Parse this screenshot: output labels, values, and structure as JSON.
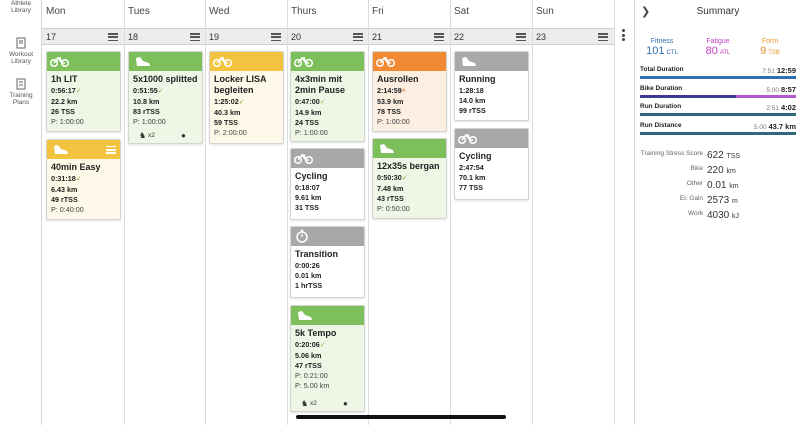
{
  "nav": {
    "items": [
      {
        "label": "Athlete Library"
      },
      {
        "label": "Workout Library"
      },
      {
        "label": "Training Plans"
      }
    ]
  },
  "days": [
    {
      "name": "Mon",
      "date": "17"
    },
    {
      "name": "Tues",
      "date": "18"
    },
    {
      "name": "Wed",
      "date": "19"
    },
    {
      "name": "Thurs",
      "date": "20"
    },
    {
      "name": "Fri",
      "date": "21"
    },
    {
      "name": "Sat",
      "date": "22"
    },
    {
      "name": "Sun",
      "date": "23"
    }
  ],
  "workouts": {
    "mon_1": {
      "title": "1h LIT",
      "duration": "0:56:17",
      "distance": "22.2 km",
      "load": "26 TSS",
      "planned": "P: 1:00:00"
    },
    "mon_2": {
      "title": "40min Easy",
      "duration": "0:31:18",
      "distance": "6.43 km",
      "load": "49 rTSS",
      "planned": "P: 0:40:00"
    },
    "tue_1": {
      "title": "5x1000 splitted",
      "duration": "0:51:55",
      "distance": "10.8 km",
      "load": "83 rTSS",
      "planned": "P: 1:00:00",
      "attachments": "x2"
    },
    "wed_1": {
      "title": "Locker LISA begleiten",
      "duration": "1:25:02",
      "distance": "40.3 km",
      "load": "59 TSS",
      "planned": "P: 2:00:00"
    },
    "thu_1": {
      "title": "4x3min mit 2min Pause",
      "duration": "0:47:00",
      "distance": "14.9 km",
      "load": "24 TSS",
      "planned": "P: 1:00:00"
    },
    "thu_2": {
      "title": "Cycling",
      "duration": "0:18:07",
      "distance": "9.61 km",
      "load": "31 TSS"
    },
    "thu_3": {
      "title": "Transition",
      "duration": "0:00:26",
      "distance": "0.01 km",
      "load": "1 hrTSS"
    },
    "thu_4": {
      "title": "5k Tempo",
      "duration": "0:20:06",
      "distance": "5.06 km",
      "load": "47 rTSS",
      "planned": "P: 0:21:00",
      "planned_distance": "P: 5.00 km",
      "attachments": "x2"
    },
    "fri_1": {
      "title": "Ausrollen",
      "duration": "2:14:59",
      "distance": "53.9 km",
      "load": "78 TSS",
      "planned": "P: 1:00:00"
    },
    "fri_2": {
      "title": "12x35s bergan",
      "duration": "0:50:30",
      "distance": "7.48 km",
      "load": "43 rTSS",
      "planned": "P: 0:50:00"
    },
    "sat_1": {
      "title": "Running",
      "duration": "1:28:18",
      "distance": "14.0 km",
      "load": "99 rTSS"
    },
    "sat_2": {
      "title": "Cycling",
      "duration": "2:47:54",
      "distance": "70.1 km",
      "load": "77 TSS"
    }
  },
  "summary": {
    "title": "Summary",
    "fitness": {
      "label": "Fitness",
      "value": "101",
      "unit": "CTL"
    },
    "fatigue": {
      "label": "Fatigue",
      "value": "80",
      "unit": "ATL"
    },
    "form": {
      "label": "Form",
      "value": "9",
      "unit": "TSB"
    },
    "rows": [
      {
        "label": "Total Duration",
        "planned": "7:51",
        "actual": "12:59"
      },
      {
        "label": "Bike Duration",
        "planned": "5:00",
        "actual": "8:57"
      },
      {
        "label": "Run Duration",
        "planned": "2:51",
        "actual": "4:02"
      },
      {
        "label": "Run Distance",
        "planned": "5.00",
        "actual": "43.7 km"
      }
    ],
    "stats": [
      {
        "label": "Training Stress Score",
        "value": "622",
        "unit": "TSS"
      },
      {
        "label": "Bike",
        "value": "220",
        "unit": "km"
      },
      {
        "label": "Other",
        "value": "0.01",
        "unit": "km"
      },
      {
        "label": "El. Gain",
        "value": "2573",
        "unit": "m"
      },
      {
        "label": "Work",
        "value": "4030",
        "unit": "kJ"
      }
    ]
  },
  "colors": {
    "bike": "#7dbf5a",
    "run": "#f2c33e",
    "over": "#f18a32",
    "unplanned": "#a8a8a8",
    "fitness": "#2e6fb3",
    "fatigue": "#c13fc3",
    "form": "#e8962a"
  }
}
